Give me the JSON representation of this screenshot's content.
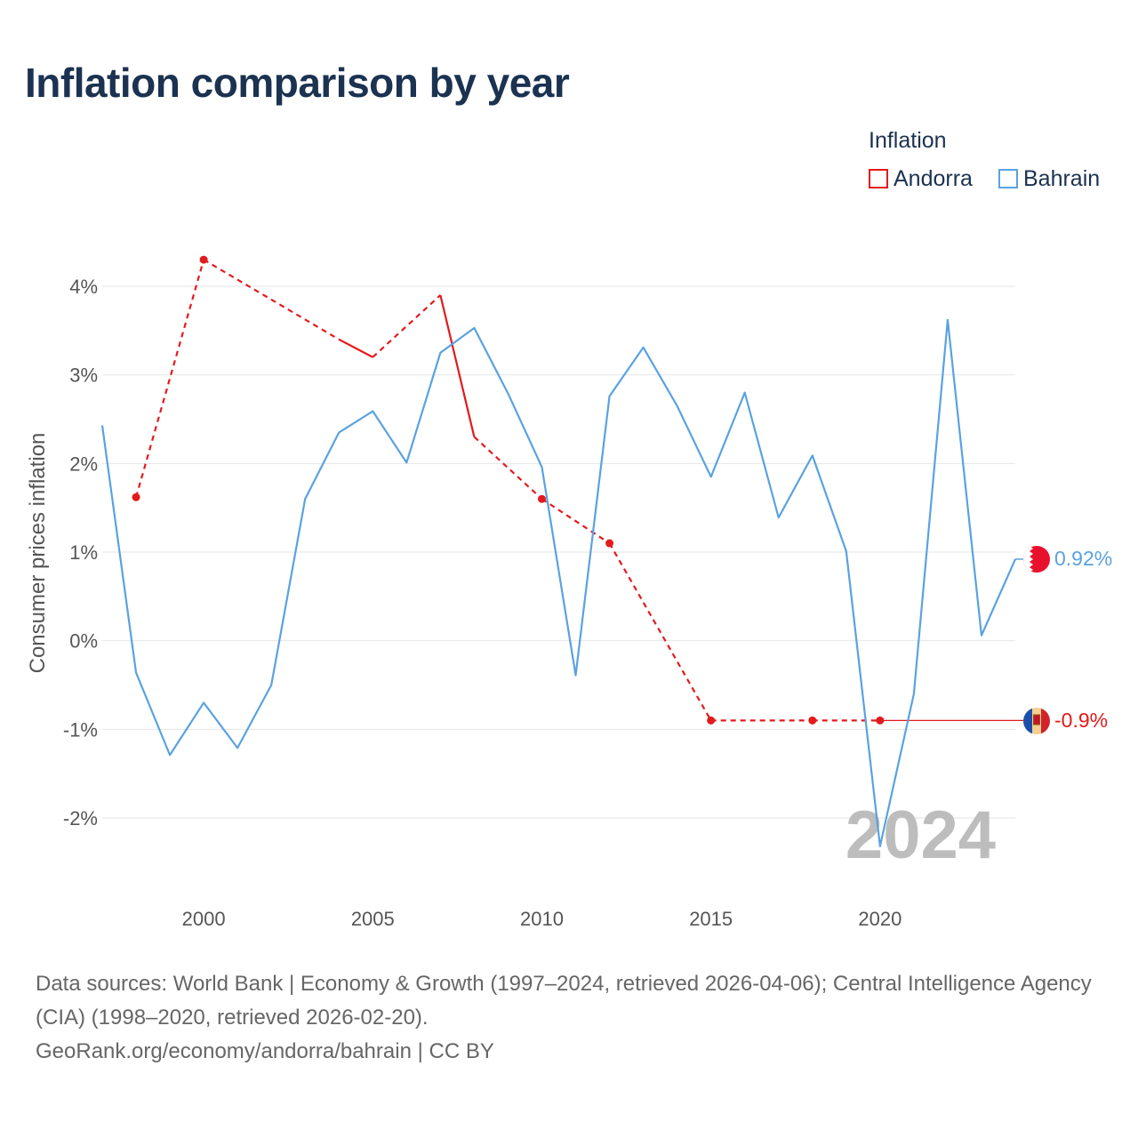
{
  "title": "Inflation comparison by year",
  "legend": {
    "title": "Inflation",
    "items": [
      {
        "label": "Andorra",
        "color": "#e31a1c"
      },
      {
        "label": "Bahrain",
        "color": "#5aa2e0"
      }
    ]
  },
  "footer": {
    "sources": "Data sources: World Bank | Economy & Growth (1997–2024, retrieved 2026-04-06); Central Intelligence Agency (CIA) (1998–2020, retrieved 2026-02-20).",
    "credit": "GeoRank.org/economy/andorra/bahrain | CC BY"
  },
  "chart_data": {
    "type": "line",
    "title": "Inflation comparison by year",
    "xlabel": "",
    "ylabel": "Consumer prices inflation",
    "xlim": [
      1997,
      2024
    ],
    "ylim": [
      -2.8,
      4.4
    ],
    "y_ticks": [
      4,
      3,
      2,
      1,
      0,
      -1,
      -2
    ],
    "y_tick_labels": [
      "4%",
      "3%",
      "2%",
      "1%",
      "0%",
      "-1%",
      "-2%"
    ],
    "x_ticks": [
      2000,
      2005,
      2010,
      2015,
      2020
    ],
    "x_tick_labels": [
      "2000",
      "2005",
      "2010",
      "2015",
      "2020"
    ],
    "grid": true,
    "year_watermark": "2024",
    "series": [
      {
        "name": "Bahrain",
        "color": "#5aa2e0",
        "x": [
          1997,
          1998,
          1999,
          2000,
          2001,
          2002,
          2003,
          2004,
          2005,
          2006,
          2007,
          2008,
          2009,
          2010,
          2011,
          2012,
          2013,
          2014,
          2015,
          2016,
          2017,
          2018,
          2019,
          2020,
          2021,
          2022,
          2023,
          2024
        ],
        "values": [
          2.43,
          -0.36,
          -1.29,
          -0.7,
          -1.21,
          -0.5,
          1.6,
          2.35,
          2.59,
          2.01,
          3.25,
          3.53,
          2.79,
          1.96,
          -0.39,
          2.76,
          3.31,
          2.65,
          1.85,
          2.8,
          1.39,
          2.09,
          1.01,
          -2.32,
          -0.6,
          3.62,
          0.06,
          0.92
        ],
        "end_label": "0.92%"
      },
      {
        "name": "Andorra",
        "color": "#e31a1c",
        "x": [
          1998,
          2000,
          2004,
          2005,
          2007,
          2008,
          2010,
          2012,
          2015,
          2018,
          2020
        ],
        "values": [
          1.62,
          4.3,
          3.4,
          3.2,
          3.9,
          2.3,
          1.6,
          1.1,
          -0.9,
          -0.9,
          -0.9
        ],
        "end_label": "-0.9%"
      }
    ]
  }
}
